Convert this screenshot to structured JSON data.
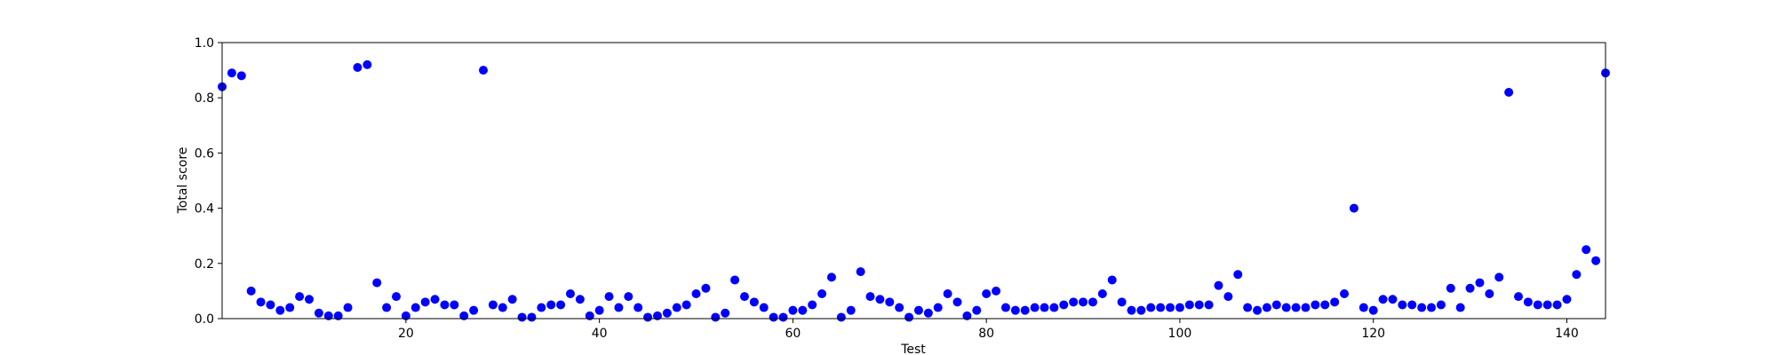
{
  "chart_data": {
    "type": "scatter",
    "xlabel": "Test",
    "ylabel": "Total score",
    "xlim": [
      1,
      144
    ],
    "ylim": [
      0,
      1.0
    ],
    "x_ticks": [
      20,
      40,
      60,
      80,
      100,
      120,
      140
    ],
    "y_ticks": [
      0.0,
      0.2,
      0.4,
      0.6,
      0.8,
      1.0
    ],
    "y_tick_labels": [
      "0.0",
      "0.2",
      "0.4",
      "0.6",
      "0.8",
      "1.0"
    ],
    "grid": false,
    "marker_color": "#0000ff",
    "series": [
      {
        "x": [
          1,
          2,
          3,
          4,
          5,
          6,
          7,
          8,
          9,
          10,
          11,
          12,
          13,
          14,
          15,
          16,
          17,
          18,
          19,
          20,
          21,
          22,
          23,
          24,
          25,
          26,
          27,
          28,
          29,
          30,
          31,
          32,
          33,
          34,
          35,
          36,
          37,
          38,
          39,
          40,
          41,
          42,
          43,
          44,
          45,
          46,
          47,
          48,
          49,
          50,
          51,
          52,
          53,
          54,
          55,
          56,
          57,
          58,
          59,
          60,
          61,
          62,
          63,
          64,
          65,
          66,
          67,
          68,
          69,
          70,
          71,
          72,
          73,
          74,
          75,
          76,
          77,
          78,
          79,
          80,
          81,
          82,
          83,
          84,
          85,
          86,
          87,
          88,
          89,
          90,
          91,
          92,
          93,
          94,
          95,
          96,
          97,
          98,
          99,
          100,
          101,
          102,
          103,
          104,
          105,
          106,
          107,
          108,
          109,
          110,
          111,
          112,
          113,
          114,
          115,
          116,
          117,
          118,
          119,
          120,
          121,
          122,
          123,
          124,
          125,
          126,
          127,
          128,
          129,
          130,
          131,
          132,
          133,
          134,
          135,
          136,
          137,
          138,
          139,
          140,
          141,
          142,
          143,
          144
        ],
        "y": [
          0.84,
          0.89,
          0.88,
          0.1,
          0.06,
          0.05,
          0.03,
          0.04,
          0.08,
          0.07,
          0.02,
          0.01,
          0.01,
          0.04,
          0.91,
          0.92,
          0.13,
          0.04,
          0.08,
          0.01,
          0.04,
          0.06,
          0.07,
          0.05,
          0.05,
          0.01,
          0.03,
          0.9,
          0.05,
          0.04,
          0.07,
          0.005,
          0.005,
          0.04,
          0.05,
          0.05,
          0.09,
          0.07,
          0.01,
          0.03,
          0.08,
          0.04,
          0.08,
          0.04,
          0.005,
          0.01,
          0.02,
          0.04,
          0.05,
          0.09,
          0.11,
          0.005,
          0.02,
          0.14,
          0.08,
          0.06,
          0.04,
          0.005,
          0.005,
          0.03,
          0.03,
          0.05,
          0.09,
          0.15,
          0.005,
          0.03,
          0.17,
          0.08,
          0.07,
          0.06,
          0.04,
          0.005,
          0.03,
          0.02,
          0.04,
          0.09,
          0.06,
          0.01,
          0.03,
          0.09,
          0.1,
          0.04,
          0.03,
          0.03,
          0.04,
          0.04,
          0.04,
          0.05,
          0.06,
          0.06,
          0.06,
          0.09,
          0.14,
          0.06,
          0.03,
          0.03,
          0.04,
          0.04,
          0.04,
          0.04,
          0.05,
          0.05,
          0.05,
          0.12,
          0.08,
          0.16,
          0.04,
          0.03,
          0.04,
          0.05,
          0.04,
          0.04,
          0.04,
          0.05,
          0.05,
          0.06,
          0.09,
          0.4,
          0.04,
          0.03,
          0.07,
          0.07,
          0.05,
          0.05,
          0.04,
          0.04,
          0.05,
          0.11,
          0.04,
          0.11,
          0.13,
          0.09,
          0.15,
          0.82,
          0.08,
          0.06,
          0.05,
          0.05,
          0.05,
          0.07,
          0.16,
          0.25,
          0.21,
          0.89
        ]
      }
    ]
  }
}
